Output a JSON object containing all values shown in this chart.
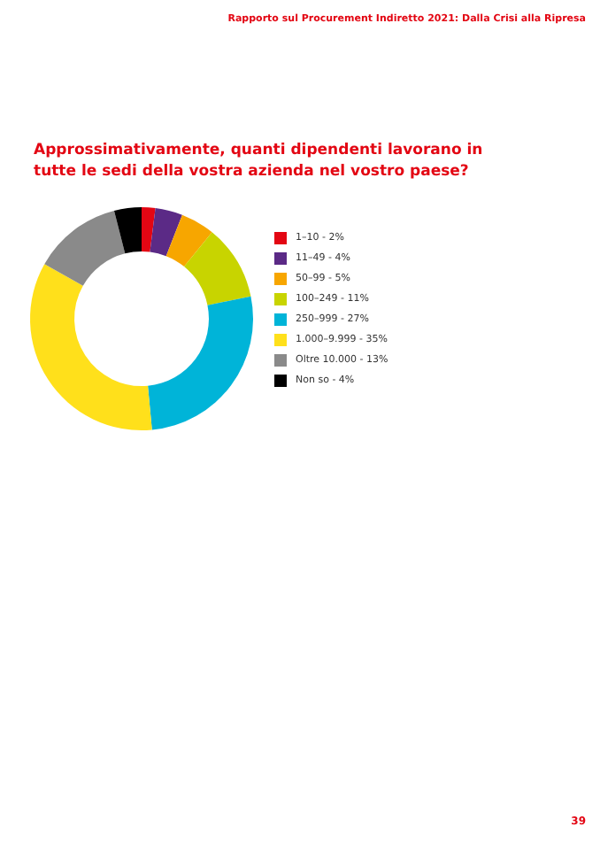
{
  "chart_data": {
    "type": "donut",
    "title": "Approssimativamente, quanti dipendenti lavorano in tutte le sedi della vostra azienda nel vostro paese?",
    "categories": [
      "1–10 - 2%",
      "11–49 - 4%",
      "50–99 - 5%",
      "100–249 - 11%",
      "250–999 - 27%",
      "1.000–9.999 - 35%",
      "Oltre 10.000 - 13%",
      "Non so - 4%"
    ],
    "values": [
      2,
      4,
      5,
      11,
      27,
      35,
      13,
      4
    ],
    "colors": [
      "#e30613",
      "#5b2a86",
      "#f7a600",
      "#c8d400",
      "#00b4d8",
      "#ffe01b",
      "#8a8a8a",
      "#000000"
    ],
    "legend": "right",
    "annotations": [
      "Rapporto sul Procurement Indiretto 2021: Dalla Crisi alla Ripresa",
      "39"
    ]
  }
}
